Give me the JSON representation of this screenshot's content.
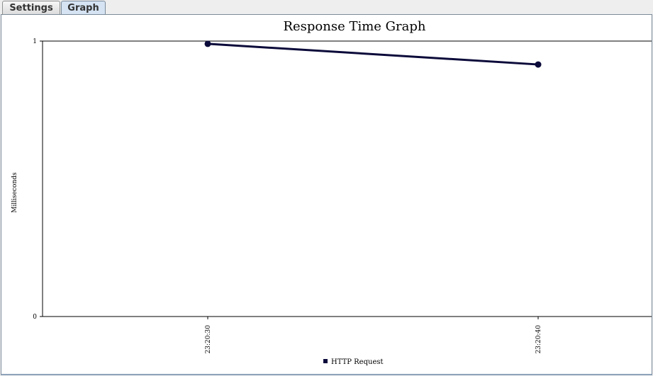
{
  "tabs": [
    {
      "label": "Settings",
      "active": false
    },
    {
      "label": "Graph",
      "active": true
    }
  ],
  "chart_data": {
    "type": "line",
    "title": "Response Time Graph",
    "ylabel": "Milliseconds",
    "xlabel": "",
    "ylim": [
      0,
      1
    ],
    "yticks": [
      "0",
      "1"
    ],
    "categories": [
      "23:20:30",
      "23:20:40"
    ],
    "series": [
      {
        "name": "HTTP Request",
        "color": "#0b0a3a",
        "values": [
          0.99,
          0.915
        ]
      }
    ],
    "legend_position": "bottom",
    "grid": false
  }
}
